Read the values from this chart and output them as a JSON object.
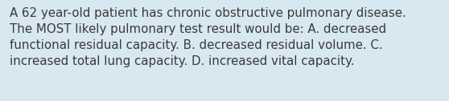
{
  "line1": "A 62 year-old patient has chronic obstructive pulmonary disease.",
  "line2": "The MOST likely pulmonary test result would be: A. decreased",
  "line3": "functional residual capacity. B. decreased residual volume. C.",
  "line4": "increased total lung capacity. D. increased vital capacity.",
  "background_color": "#d8e8f0",
  "text_color": "#3a3a3a",
  "font_size": 10.8,
  "fig_width": 5.58,
  "fig_height": 1.26,
  "dpi": 100
}
